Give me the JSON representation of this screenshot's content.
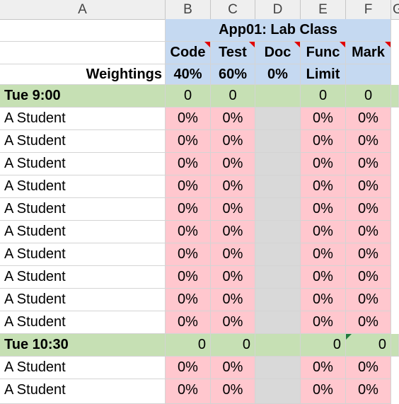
{
  "columns": [
    "A",
    "B",
    "C",
    "D",
    "E",
    "F",
    "G"
  ],
  "class_title": "App01: Lab Class",
  "headers": [
    "Code",
    "Test",
    "Doc",
    "Func",
    "Mark"
  ],
  "weightings": {
    "label": "Weightings",
    "values": [
      "40%",
      "60%",
      "0%",
      "Limit",
      ""
    ]
  },
  "groups": [
    {
      "time": "Tue 9:00",
      "totals": [
        "0",
        "0",
        "",
        "0",
        "0"
      ]
    },
    {
      "time": "Tue 10:30",
      "totals": [
        "0",
        "0",
        "",
        "0",
        "0"
      ]
    }
  ],
  "student_name": "A Student",
  "zero_pct": "0%",
  "colors": {
    "header_blue": "#c5d9f1",
    "group_green": "#c6e0b4",
    "zero_pink": "#ffc7ce",
    "doc_grey": "#d9d9d9"
  }
}
